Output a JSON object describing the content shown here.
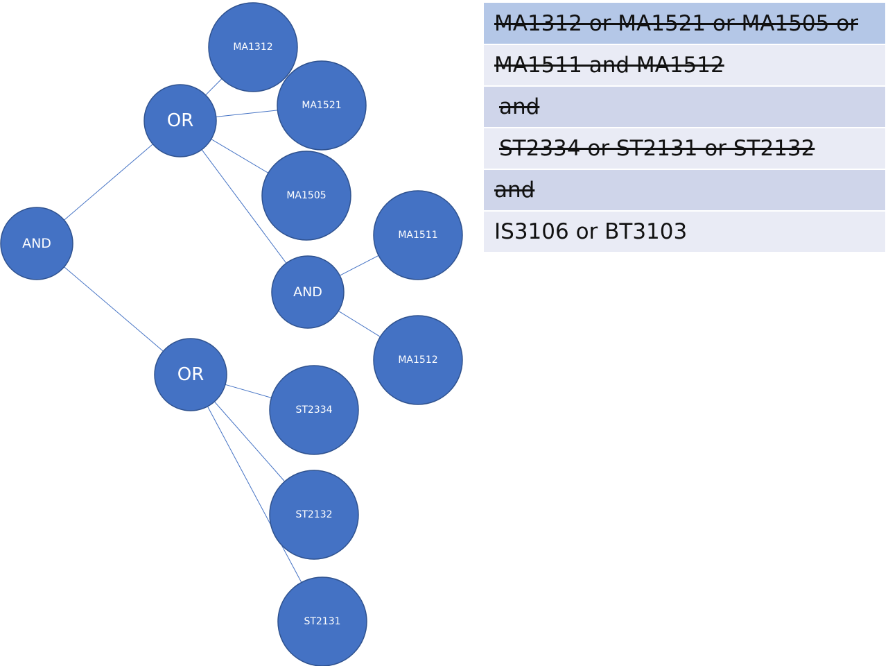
{
  "diagram": {
    "nodes": {
      "root_and": "AND",
      "or_ma": "OR",
      "ma1312": "MA1312",
      "ma1521": "MA1521",
      "ma1505": "MA1505",
      "and_ma": "AND",
      "ma1511": "MA1511",
      "ma1512": "MA1512",
      "or_st": "OR",
      "st2334": "ST2334",
      "st2132": "ST2132",
      "st2131": "ST2131"
    },
    "edges": [
      [
        "root_and",
        "or_ma"
      ],
      [
        "root_and",
        "or_st"
      ],
      [
        "or_ma",
        "ma1312"
      ],
      [
        "or_ma",
        "ma1521"
      ],
      [
        "or_ma",
        "ma1505"
      ],
      [
        "or_ma",
        "and_ma"
      ],
      [
        "and_ma",
        "ma1511"
      ],
      [
        "and_ma",
        "ma1512"
      ],
      [
        "or_st",
        "st2334"
      ],
      [
        "or_st",
        "st2132"
      ],
      [
        "or_st",
        "st2131"
      ]
    ]
  },
  "requirements": {
    "rows": [
      {
        "text": "MA1312 or MA1521 or MA1505 or",
        "struck": true
      },
      {
        "text": "MA1511 and MA1512",
        "struck": true
      },
      {
        "text": "and",
        "struck": true
      },
      {
        "text": "ST2334 or ST2131 or ST2132",
        "struck": true
      },
      {
        "text": "and",
        "struck": true
      },
      {
        "text": "IS3106 or BT3103",
        "struck": false
      }
    ]
  },
  "colors": {
    "node_fill": "#4472c4",
    "node_stroke": "#2f528f",
    "table_header": "#b4c7e7",
    "table_row_light": "#e9ebf5",
    "table_row_dark": "#cfd5ea"
  }
}
